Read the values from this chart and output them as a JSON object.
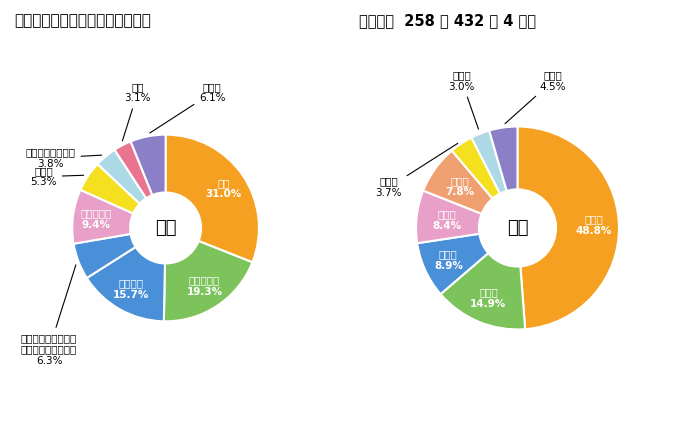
{
  "title_left": "令和元年度一般会計予算の構成比",
  "title_right": "予算総額  258 億 432 万 4 千円",
  "left_center_label": "歳入",
  "right_center_label": "歳出",
  "left_labels": [
    "市税",
    "国庫支出金",
    "都支出金",
    "国有提供施設等所在\n市町村助成交付金等",
    "地方交付税",
    "繰入金",
    "地方消費税交付金",
    "市債",
    "その他"
  ],
  "left_values": [
    31.0,
    19.3,
    15.7,
    6.3,
    9.4,
    5.3,
    3.8,
    3.1,
    6.1
  ],
  "left_colors": [
    "#F5A020",
    "#7DC35B",
    "#4A90D9",
    "#4A90D9",
    "#E8A0C8",
    "#F5E020",
    "#ADD8E6",
    "#E87490",
    "#8B7FC7"
  ],
  "right_labels": [
    "民生費",
    "教育費",
    "衛生費",
    "総務費",
    "土木費",
    "消防費",
    "公債費",
    "その他"
  ],
  "right_values": [
    48.8,
    14.9,
    8.9,
    8.4,
    7.8,
    3.7,
    3.0,
    4.5
  ],
  "right_colors": [
    "#F5A020",
    "#7DC35B",
    "#4A90D9",
    "#E8A0C8",
    "#F0A070",
    "#F5E020",
    "#ADD8E6",
    "#8B7FC7"
  ],
  "bg_color": "#FFFFFF"
}
